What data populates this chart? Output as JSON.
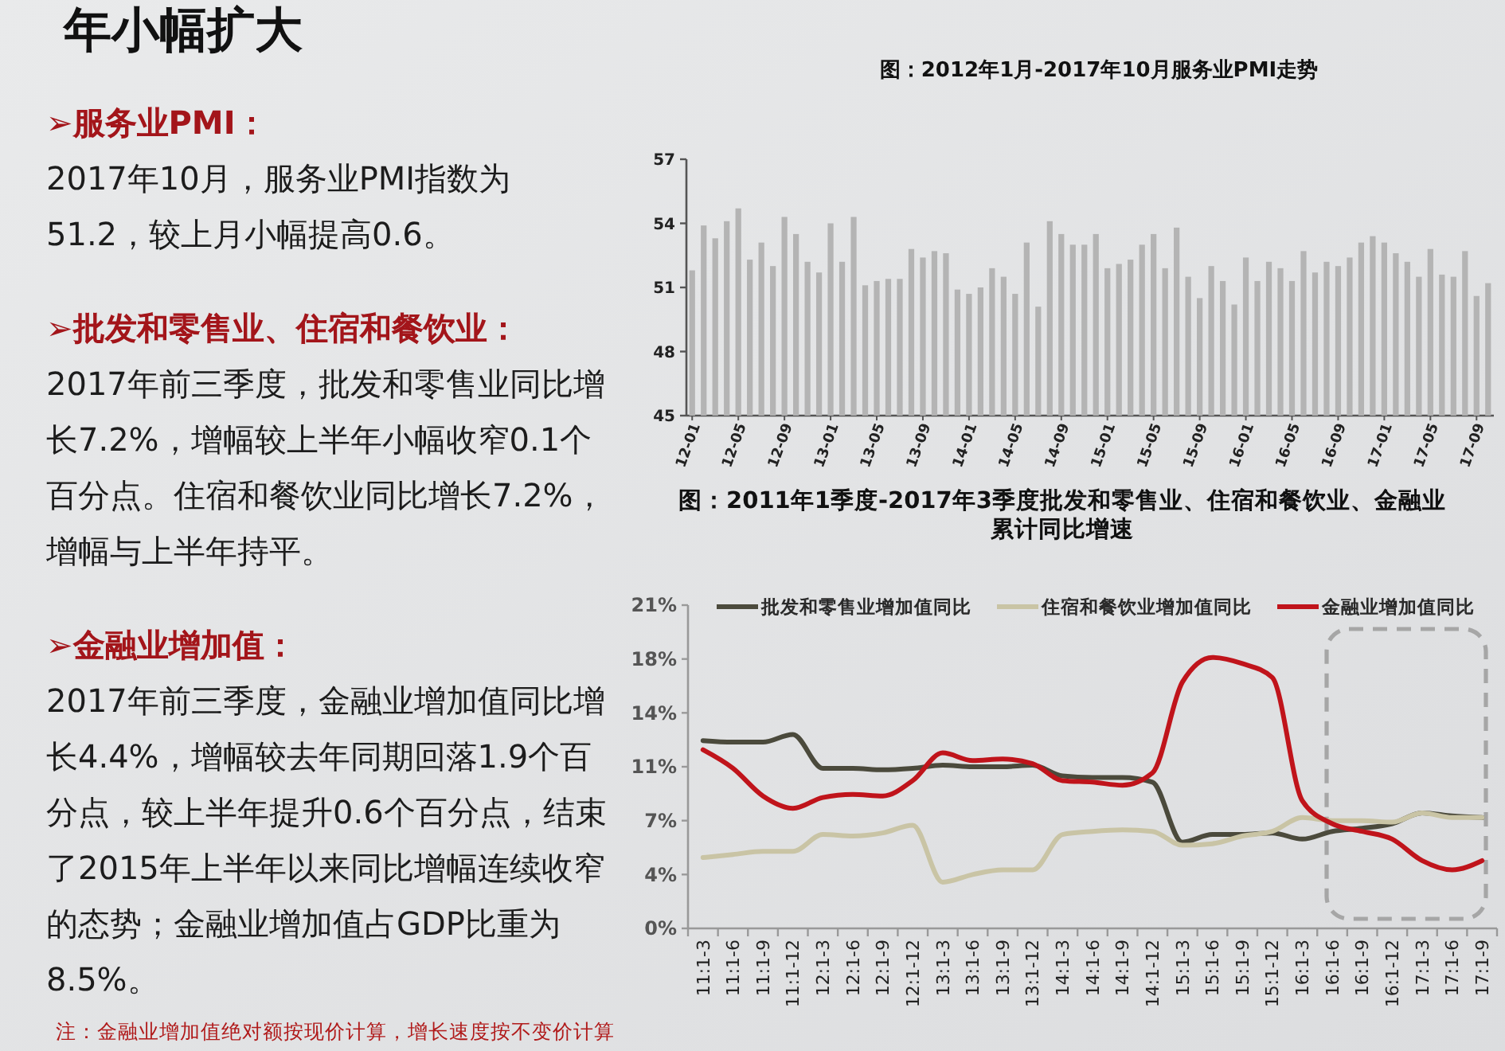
{
  "chart_data": [
    {
      "type": "other",
      "title": "年小幅扩大",
      "annotations": [
        "➢服务业PMI：",
        "2017年10月，服务业PMI指数为51.2，较上月小幅提高0.6。",
        "➢批发和零售业、住宿和餐饮业：",
        "2017年前三季度，批发和零售业同比增长7.2%，增幅较上半年小幅收窄0.1个百分点。住宿和餐饮业同比增长7.2%，增幅与上半年持平。",
        "➢金融业增加值：",
        "2017年前三季度，金融业增加值同比增长4.4%，增幅较去年同期回落1.9个百分点，较上半年提升0.6个百分点，结束了2015年上半年以来同比增幅连续收窄的态势；金融业增加值占GDP比重为8.5%。",
        "注：金融业增加值绝对额按现价计算，增长速度按不变价计算"
      ]
    },
    {
      "type": "bar",
      "title": "图：2012年1月-2017年10月服务业PMI走势",
      "categories": [
        "12-01",
        null,
        null,
        null,
        "12-05",
        null,
        null,
        null,
        "12-09",
        null,
        null,
        null,
        "13-01",
        null,
        null,
        null,
        "13-05",
        null,
        null,
        null,
        "13-09",
        null,
        null,
        null,
        "14-01",
        null,
        null,
        null,
        "14-05",
        null,
        null,
        null,
        "14-09",
        null,
        null,
        null,
        "15-01",
        null,
        null,
        null,
        "15-05",
        null,
        null,
        null,
        "15-09",
        null,
        null,
        null,
        "16-01",
        null,
        null,
        null,
        "16-05",
        null,
        null,
        null,
        "16-09",
        null,
        null,
        null,
        "17-01",
        null,
        null,
        null,
        "17-05",
        null,
        null,
        null,
        "17-09",
        null
      ],
      "values": [
        51.8,
        53.9,
        53.3,
        54.1,
        54.7,
        52.3,
        53.1,
        52.0,
        54.3,
        53.5,
        52.2,
        51.7,
        54.0,
        52.2,
        54.3,
        51.1,
        51.3,
        51.4,
        51.4,
        52.8,
        52.4,
        52.7,
        52.6,
        50.9,
        50.7,
        51.0,
        51.9,
        51.5,
        50.7,
        53.1,
        50.1,
        54.1,
        53.5,
        53.0,
        53.0,
        53.5,
        51.9,
        52.1,
        52.3,
        53.0,
        53.5,
        51.9,
        53.8,
        51.5,
        50.5,
        52.0,
        51.3,
        50.2,
        52.4,
        51.3,
        52.2,
        51.9,
        51.3,
        52.7,
        51.7,
        52.2,
        52.0,
        52.4,
        53.1,
        53.4,
        53.1,
        52.6,
        52.2,
        51.5,
        52.8,
        51.6,
        51.5,
        52.7,
        50.6,
        51.2
      ],
      "color": "#b4b4b4",
      "ylim": [
        45,
        57
      ],
      "yticks": [
        45,
        48,
        51,
        54,
        57
      ]
    },
    {
      "type": "line",
      "title": "图：2011年1季度-2017年3季度批发和零售业、住宿和餐饮业、金融业累计同比增速",
      "categories": [
        "11:1-3",
        "11:1-6",
        "11:1-9",
        "11:1-12",
        "12:1-3",
        "12:1-6",
        "12:1-9",
        "12:1-12",
        "13:1-3",
        "13:1-6",
        "13:1-9",
        "13:1-12",
        "14:1-3",
        "14:1-6",
        "14:1-9",
        "14:1-12",
        "15:1-3",
        "15:1-6",
        "15:1-9",
        "15:1-12",
        "16:1-3",
        "16:1-6",
        "16:1-9",
        "16:1-12",
        "17:1-3",
        "17:1-6",
        "17:1-9"
      ],
      "series": [
        {
          "name": "批发和零售业增加值同比",
          "color": "#4b4a3c",
          "values": [
            12.2,
            12.1,
            12.1,
            12.6,
            10.4,
            10.4,
            10.3,
            10.4,
            10.6,
            10.5,
            10.5,
            10.6,
            9.9,
            9.8,
            9.8,
            9.5,
            5.6,
            6.1,
            6.1,
            6.2,
            5.8,
            6.3,
            6.5,
            6.8,
            7.5,
            7.3,
            7.2
          ]
        },
        {
          "name": "住宿和餐饮业增加值同比",
          "color": "#c9c4a5",
          "values": [
            4.6,
            4.8,
            5.0,
            5.0,
            6.1,
            6.0,
            6.2,
            6.7,
            3.0,
            3.5,
            3.8,
            3.8,
            6.1,
            6.3,
            6.4,
            6.3,
            5.4,
            5.5,
            6.0,
            6.3,
            7.2,
            7.0,
            7.0,
            6.9,
            7.5,
            7.2,
            7.2
          ]
        },
        {
          "name": "金融业增加值同比",
          "color": "#c0141b",
          "values": [
            11.6,
            10.4,
            8.6,
            7.8,
            8.5,
            8.7,
            8.6,
            9.6,
            11.4,
            10.9,
            11.0,
            10.7,
            9.6,
            9.5,
            9.3,
            10.1,
            16.0,
            17.6,
            17.2,
            16.3,
            8.3,
            6.8,
            6.3,
            5.8,
            4.4,
            3.8,
            4.4
          ]
        }
      ],
      "ylim": [
        0,
        21
      ],
      "yticks": [
        {
          "value": 0,
          "label": "0%"
        },
        {
          "value": 3.5,
          "label": "4%"
        },
        {
          "value": 7,
          "label": "7%"
        },
        {
          "value": 10.5,
          "label": "11%"
        },
        {
          "value": 14,
          "label": "14%"
        },
        {
          "value": 17.5,
          "label": "18%"
        },
        {
          "value": 21,
          "label": "21%"
        }
      ],
      "legend": "top"
    }
  ]
}
